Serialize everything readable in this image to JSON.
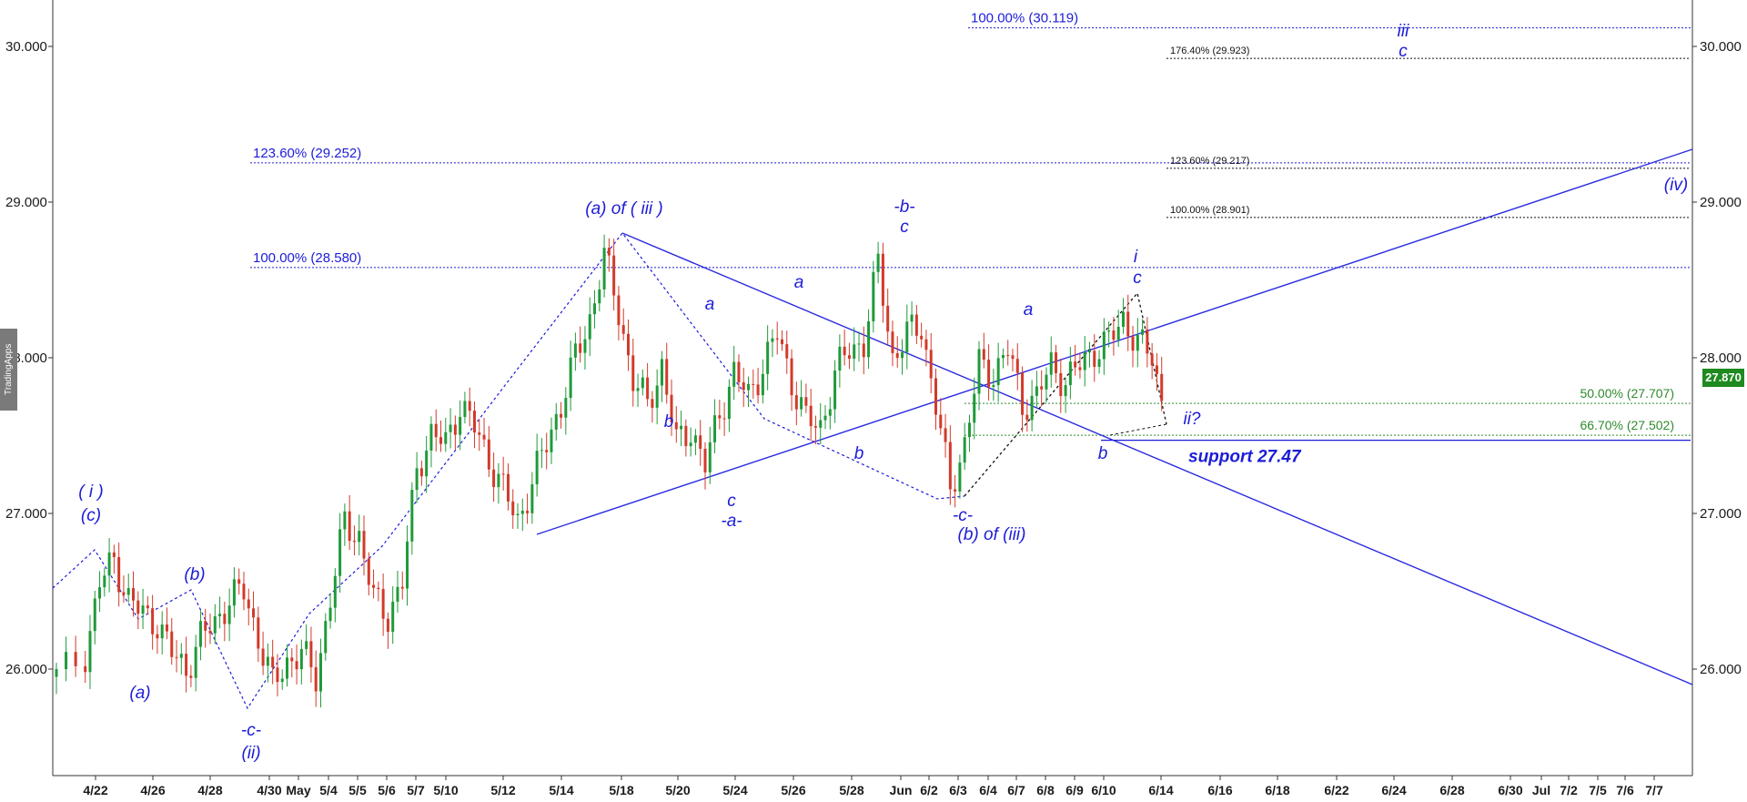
{
  "chart_data": {
    "type": "candlestick",
    "watermark": "TradingApps",
    "y_ticks": [
      "30.000",
      "29.000",
      "28.000",
      "27.000",
      "26.000"
    ],
    "y_tick_values": [
      30,
      29,
      28,
      27,
      26
    ],
    "ylim": [
      25.3,
      30.3
    ],
    "last_price": "27.870",
    "x_ticks": [
      "4/22",
      "4/26",
      "4/28",
      "4/30",
      "May",
      "5/4",
      "5/5",
      "5/6",
      "5/7",
      "5/10",
      "5/12",
      "5/14",
      "5/18",
      "5/20",
      "5/24",
      "5/26",
      "5/28",
      "Jun",
      "6/2",
      "6/3",
      "6/4",
      "6/7",
      "6/8",
      "6/9",
      "6/10",
      "6/14",
      "6/16",
      "6/18",
      "6/22",
      "6/24",
      "6/28",
      "6/30",
      "Jul",
      "7/2",
      "7/5",
      "7/6",
      "7/7"
    ],
    "fib_levels_blue": [
      {
        "label": "100.00% (30.119)",
        "value": 30.119
      },
      {
        "label": "123.60% (29.252)",
        "value": 29.252
      },
      {
        "label": "100.00% (28.580)",
        "value": 28.58
      }
    ],
    "fib_levels_black": [
      {
        "label": "176.40% (29.923)",
        "value": 29.923
      },
      {
        "label": "123.60% (29.217)",
        "value": 29.217
      },
      {
        "label": "100.00% (28.901)",
        "value": 28.901
      }
    ],
    "fib_levels_green": [
      {
        "label": "50.00% (27.707)",
        "value": 27.707
      },
      {
        "label": "66.70% (27.502)",
        "value": 27.502
      }
    ],
    "support": {
      "label": "support 27.47",
      "value": 27.47
    },
    "wave_labels": [
      {
        "text": "( i )",
        "bold": false
      },
      {
        "text": "(c)",
        "bold": false
      },
      {
        "text": "(a)",
        "bold": false
      },
      {
        "text": "(b)",
        "bold": false
      },
      {
        "text": "-c-",
        "bold": false
      },
      {
        "text": "(ii)",
        "bold": false
      },
      {
        "text": "(a) of ( iii )",
        "bold": false
      },
      {
        "text": "a",
        "bold": false
      },
      {
        "text": "b",
        "bold": false
      },
      {
        "text": "c",
        "bold": false
      },
      {
        "text": "-a-",
        "bold": false
      },
      {
        "text": "a",
        "bold": false
      },
      {
        "text": "b",
        "bold": false
      },
      {
        "text": "-b-",
        "bold": false
      },
      {
        "text": "c",
        "bold": false
      },
      {
        "text": "-c-",
        "bold": false
      },
      {
        "text": "(b) of (iii)",
        "bold": false
      },
      {
        "text": "a",
        "bold": false
      },
      {
        "text": "b",
        "bold": false
      },
      {
        "text": "i",
        "bold": false
      },
      {
        "text": "c",
        "bold": false
      },
      {
        "text": "ii?",
        "bold": false
      },
      {
        "text": "iii",
        "bold": false
      },
      {
        "text": "c",
        "bold": false
      },
      {
        "text": "(iv)",
        "bold": false
      }
    ],
    "price_path": [
      [
        0,
        25.95
      ],
      [
        4,
        26.1
      ],
      [
        6,
        26.55
      ],
      [
        8,
        26.7
      ],
      [
        10,
        26.45
      ],
      [
        12,
        26.35
      ],
      [
        14,
        26.3
      ],
      [
        16,
        26.1
      ],
      [
        18,
        26.0
      ],
      [
        20,
        26.2
      ],
      [
        22,
        26.3
      ],
      [
        24,
        26.45
      ],
      [
        26,
        26.5
      ],
      [
        28,
        26.2
      ],
      [
        30,
        25.9
      ],
      [
        32,
        26.05
      ],
      [
        34,
        26.1
      ],
      [
        36,
        25.95
      ],
      [
        38,
        26.45
      ],
      [
        40,
        26.95
      ],
      [
        42,
        26.85
      ],
      [
        44,
        26.45
      ],
      [
        46,
        26.35
      ],
      [
        48,
        26.55
      ],
      [
        50,
        27.3
      ],
      [
        52,
        27.5
      ],
      [
        54,
        27.45
      ],
      [
        56,
        27.7
      ],
      [
        58,
        27.55
      ],
      [
        60,
        27.35
      ],
      [
        62,
        27.15
      ],
      [
        64,
        26.95
      ],
      [
        66,
        27.2
      ],
      [
        68,
        27.45
      ],
      [
        70,
        27.7
      ],
      [
        72,
        28.0
      ],
      [
        74,
        28.25
      ],
      [
        76,
        28.65
      ],
      [
        78,
        28.3
      ],
      [
        80,
        27.85
      ],
      [
        82,
        27.7
      ],
      [
        84,
        27.95
      ],
      [
        86,
        27.45
      ],
      [
        88,
        27.55
      ],
      [
        90,
        27.3
      ],
      [
        92,
        27.65
      ],
      [
        94,
        27.9
      ],
      [
        96,
        27.75
      ],
      [
        98,
        27.95
      ],
      [
        100,
        28.15
      ],
      [
        102,
        27.85
      ],
      [
        104,
        27.6
      ],
      [
        106,
        27.55
      ],
      [
        108,
        27.9
      ],
      [
        110,
        28.05
      ],
      [
        112,
        28.1
      ],
      [
        114,
        28.6
      ],
      [
        116,
        28.0
      ],
      [
        118,
        28.15
      ],
      [
        120,
        28.2
      ],
      [
        122,
        27.7
      ],
      [
        124,
        27.15
      ],
      [
        126,
        27.45
      ],
      [
        128,
        27.95
      ],
      [
        130,
        27.9
      ],
      [
        132,
        28.05
      ],
      [
        134,
        27.7
      ],
      [
        136,
        27.75
      ],
      [
        138,
        27.95
      ],
      [
        140,
        27.85
      ],
      [
        142,
        27.95
      ],
      [
        144,
        28.05
      ],
      [
        146,
        28.1
      ],
      [
        148,
        28.25
      ],
      [
        150,
        28.1
      ],
      [
        152,
        28.0
      ],
      [
        154,
        27.6
      ]
    ]
  }
}
